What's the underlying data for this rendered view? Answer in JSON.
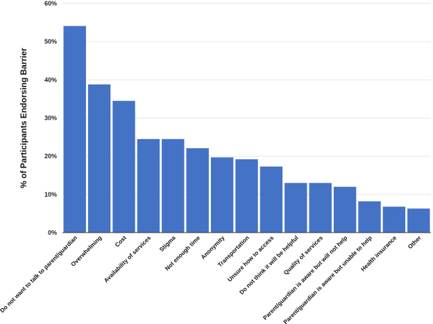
{
  "chart_data": {
    "type": "bar",
    "title": "",
    "xlabel": "",
    "ylabel": "% of Participants Endorsing Barrier",
    "ylim": [
      0,
      60
    ],
    "y_ticks": [
      "0%",
      "10%",
      "20%",
      "30%",
      "40%",
      "50%",
      "60%"
    ],
    "y_tick_values": [
      0,
      10,
      20,
      30,
      40,
      50,
      60
    ],
    "grid": true,
    "categories": [
      "Do not want to talk to parent/guardian",
      "Overwhelming",
      "Cost",
      "Availability of services",
      "Stigma",
      "Not enough time",
      "Anonymity",
      "Transportation",
      "Unsure how to access",
      "Do not think it will be helpful",
      "Quality of services",
      "Parent/guardian is aware but will not help",
      "Parent/guardian is aware but unable to help",
      "Health insurance",
      "Other"
    ],
    "values": [
      54.1,
      38.8,
      34.5,
      24.5,
      24.5,
      22.1,
      19.7,
      19.2,
      17.3,
      13.0,
      13.0,
      12.0,
      8.2,
      6.8,
      6.3
    ],
    "bar_color": "#4472c4"
  }
}
